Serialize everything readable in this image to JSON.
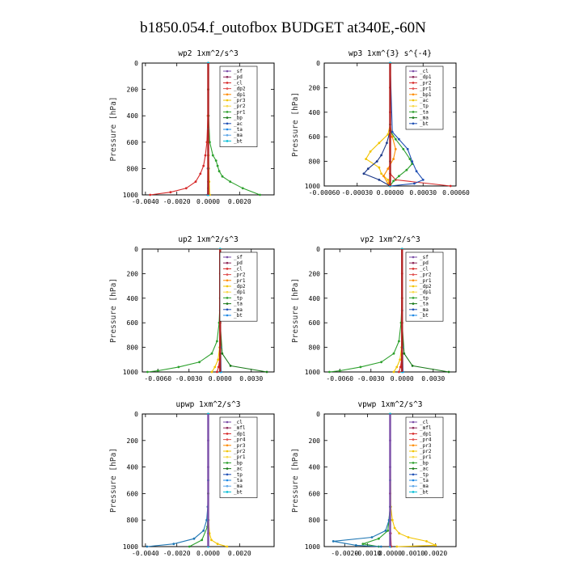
{
  "figure_title": "b1850.054.f_outofbox  BUDGET at340E,-60N",
  "chart_data": [
    {
      "type": "line",
      "title": "wp2   1xm^2/s^3",
      "ylabel": "Pressure [hPa]",
      "ylim": [
        1000,
        0
      ],
      "yticks": [
        "0",
        "200",
        "400",
        "600",
        "800",
        "1000"
      ],
      "xlim": [
        -0.0042,
        0.0042
      ],
      "xticks": [
        {
          "v": -0.004,
          "label": "-0.0040"
        },
        {
          "v": -0.002,
          "label": "-0.0020"
        },
        {
          "v": 0,
          "label": "0.0000"
        },
        {
          "v": 0.002,
          "label": "0.0020"
        }
      ],
      "legend": [
        "_sf",
        "_pd",
        "_cl",
        "_dp2",
        "_dp1",
        "_pr3",
        "_pr2",
        "_pr1",
        "_bp",
        "_ac",
        "_ta",
        "_ma",
        "_bt"
      ],
      "series": [
        {
          "legend": "_sf",
          "color": "#7b4ea8",
          "y": [
            0,
            200,
            400,
            600,
            700,
            800,
            900,
            950,
            1000
          ],
          "x": [
            0,
            0,
            0,
            0,
            0,
            0,
            0,
            0,
            0
          ]
        },
        {
          "legend": "_cl",
          "color": "#d62828",
          "y": [
            0,
            200,
            400,
            600,
            700,
            780,
            840,
            900,
            950,
            980,
            1000
          ],
          "x": [
            0,
            0,
            -2e-05,
            -8e-05,
            -0.00018,
            -0.0003,
            -0.0005,
            -0.0008,
            -0.0014,
            -0.0024,
            -0.0037
          ]
        },
        {
          "legend": "_pr1",
          "color": "#f2c400",
          "y": [
            0,
            400,
            600,
            700,
            800,
            900,
            1000
          ],
          "x": [
            0,
            0,
            0,
            2e-05,
            4e-05,
            6e-05,
            0.0001
          ]
        },
        {
          "legend": "_bp",
          "color": "#2ca02c",
          "y": [
            0,
            200,
            400,
            600,
            700,
            740,
            780,
            820,
            860,
            900,
            950,
            1000
          ],
          "x": [
            0,
            0,
            2e-05,
            0.0001,
            0.0003,
            0.0005,
            0.0006,
            0.0007,
            0.0009,
            0.0014,
            0.0022,
            0.0033
          ]
        },
        {
          "legend": "_ac",
          "color": "#1f4fb4",
          "y": [
            0,
            500,
            800,
            1000
          ],
          "x": [
            0,
            0,
            -2e-05,
            -4e-05
          ]
        },
        {
          "legend": "_ma",
          "color": "#1e88e5",
          "y": [
            0,
            500,
            800,
            1000
          ],
          "x": [
            0,
            0,
            1e-05,
            2e-05
          ]
        },
        {
          "legend": "_bt",
          "color": "#00bcd4",
          "y": [
            0,
            500,
            800,
            1000
          ],
          "x": [
            0,
            0,
            0,
            0
          ]
        }
      ]
    },
    {
      "type": "line",
      "title": "wp3   1xm^{3} s^{-4}",
      "ylabel": "Pressure [hPa]",
      "ylim": [
        1000,
        0
      ],
      "yticks": [
        "0",
        "200",
        "400",
        "600",
        "800",
        "1000"
      ],
      "xlim": [
        -0.0006,
        0.0006
      ],
      "xticks": [
        {
          "v": -0.0006,
          "label": "-0.00060"
        },
        {
          "v": -0.0003,
          "label": "-0.00030"
        },
        {
          "v": 0,
          "label": "0.00000"
        },
        {
          "v": 0.0003,
          "label": "0.00030"
        },
        {
          "v": 0.0006,
          "label": "0.00060"
        }
      ],
      "legend": [
        "_cl",
        "_dp1",
        "_pr2",
        "_pr1",
        "_bp1",
        "_ac",
        "_tp",
        "_ta",
        "_ma",
        "_bt"
      ],
      "series": [
        {
          "legend": "_cl",
          "color": "#d62828",
          "y": [
            0,
            200,
            400,
            600,
            800,
            900,
            950,
            1000
          ],
          "x": [
            0,
            0,
            0,
            0,
            0,
            0,
            5e-05,
            0.00055
          ]
        },
        {
          "legend": "_pr2",
          "color": "#f2c400",
          "y": [
            0,
            500,
            580,
            650,
            720,
            780,
            850,
            900,
            950,
            1000
          ],
          "x": [
            0,
            0,
            -2e-05,
            -0.0001,
            -0.00018,
            -0.00022,
            -0.0001,
            -8e-05,
            -2e-05,
            0
          ]
        },
        {
          "legend": "_pr1",
          "color": "#ff8c00",
          "y": [
            0,
            500,
            600,
            700,
            780,
            860,
            920,
            980,
            1000
          ],
          "x": [
            0,
            0,
            2e-05,
            5e-05,
            3e-05,
            -2e-05,
            -6e-05,
            -2e-05,
            0
          ]
        },
        {
          "legend": "_bp1",
          "color": "#2ca02c",
          "y": [
            0,
            550,
            620,
            700,
            780,
            820,
            870,
            920,
            960,
            1000
          ],
          "x": [
            0,
            0,
            5e-05,
            0.00012,
            0.00018,
            0.0002,
            0.00015,
            8e-05,
            3e-05,
            0
          ]
        },
        {
          "legend": "_tp",
          "color": "#1f4fb4",
          "y": [
            0,
            560,
            620,
            700,
            800,
            880,
            950,
            980,
            1000
          ],
          "x": [
            0,
            2e-05,
            8e-05,
            0.00016,
            0.0002,
            0.00024,
            0.0003,
            0.00022,
            0
          ]
        },
        {
          "legend": "_ta",
          "color": "#1e3a8a",
          "y": [
            0,
            550,
            650,
            750,
            800,
            860,
            900,
            950,
            1000
          ],
          "x": [
            0,
            0,
            -3e-05,
            -8e-05,
            -0.00012,
            -0.0002,
            -0.00024,
            -0.0001,
            0
          ]
        },
        {
          "legend": "_bt",
          "color": "#00bcd4",
          "y": [
            0,
            500,
            800,
            1000
          ],
          "x": [
            0,
            0,
            0,
            0
          ]
        }
      ]
    },
    {
      "type": "line",
      "title": "up2   1xm^2/s^3",
      "ylabel": "Pressure [hPa]",
      "ylim": [
        1000,
        0
      ],
      "yticks": [
        "0",
        "200",
        "400",
        "600",
        "800",
        "1000"
      ],
      "xlim": [
        -0.0075,
        0.0052
      ],
      "xticks": [
        {
          "v": -0.006,
          "label": "-0.0060"
        },
        {
          "v": -0.003,
          "label": "-0.0030"
        },
        {
          "v": 0,
          "label": "0.0000"
        },
        {
          "v": 0.003,
          "label": "0.0030"
        }
      ],
      "legend": [
        "_sf",
        "_pd",
        "_cl",
        "_pr2",
        "_pr1",
        "_dp2",
        "_dp1",
        "_tp",
        "_ta",
        "_ma",
        "_bt"
      ],
      "series": [
        {
          "legend": "_pd",
          "color": "#d62828",
          "y": [
            0,
            200,
            400,
            600,
            800,
            900,
            960,
            1000
          ],
          "x": [
            0,
            0,
            0,
            0,
            0,
            -5e-05,
            -0.00015,
            -0.0003
          ]
        },
        {
          "legend": "_pr2",
          "color": "#f2c400",
          "y": [
            0,
            500,
            800,
            900,
            960,
            1000
          ],
          "x": [
            0,
            0,
            -5e-05,
            -0.0002,
            -0.0005,
            -0.0008
          ]
        },
        {
          "legend": "_dp2",
          "color": "#2ca02c",
          "y": [
            0,
            400,
            600,
            750,
            850,
            920,
            960,
            990,
            1000
          ],
          "x": [
            0,
            0,
            -0.0001,
            -0.0003,
            -0.0008,
            -0.002,
            -0.004,
            -0.006,
            -0.007
          ]
        },
        {
          "legend": "_dp1",
          "color": "#1a7a1a",
          "y": [
            0,
            600,
            850,
            950,
            1000
          ],
          "x": [
            0,
            0,
            0.0002,
            0.001,
            0.0045
          ]
        },
        {
          "legend": "_tp",
          "color": "#1e88e5",
          "y": [
            0,
            500,
            800,
            1000
          ],
          "x": [
            0,
            0,
            5e-05,
            0.0001
          ]
        },
        {
          "legend": "_bt",
          "color": "#00bcd4",
          "y": [
            0,
            500,
            800,
            1000
          ],
          "x": [
            0,
            0,
            0,
            0
          ]
        }
      ]
    },
    {
      "type": "line",
      "title": "vp2   1xm^2/s^3",
      "ylabel": "Pressure [hPa]",
      "ylim": [
        1000,
        0
      ],
      "yticks": [
        "0",
        "200",
        "400",
        "600",
        "800",
        "1000"
      ],
      "xlim": [
        -0.0075,
        0.0052
      ],
      "xticks": [
        {
          "v": -0.006,
          "label": "-0.0060"
        },
        {
          "v": -0.003,
          "label": "-0.0030"
        },
        {
          "v": 0,
          "label": "0.0000"
        },
        {
          "v": 0.003,
          "label": "0.0030"
        }
      ],
      "legend": [
        "_sf",
        "_pd",
        "_cl",
        "_pr2",
        "_pr1",
        "_dp2",
        "_dp1",
        "_tp",
        "_ta",
        "_ma",
        "_bt"
      ],
      "series": [
        {
          "legend": "_pd",
          "color": "#d62828",
          "y": [
            0,
            200,
            400,
            600,
            800,
            900,
            960,
            1000
          ],
          "x": [
            0,
            0,
            0,
            0,
            0,
            -5e-05,
            -0.00015,
            -0.0003
          ]
        },
        {
          "legend": "_pr2",
          "color": "#f2c400",
          "y": [
            0,
            500,
            800,
            900,
            960,
            1000
          ],
          "x": [
            0,
            0,
            -5e-05,
            -0.0002,
            -0.0005,
            -0.0008
          ]
        },
        {
          "legend": "_dp2",
          "color": "#2ca02c",
          "y": [
            0,
            400,
            600,
            750,
            850,
            920,
            960,
            990,
            1000
          ],
          "x": [
            0,
            0,
            -0.0001,
            -0.0003,
            -0.0008,
            -0.002,
            -0.004,
            -0.006,
            -0.007
          ]
        },
        {
          "legend": "_dp1",
          "color": "#1a7a1a",
          "y": [
            0,
            600,
            850,
            950,
            1000
          ],
          "x": [
            0,
            0,
            0.0002,
            0.001,
            0.0045
          ]
        },
        {
          "legend": "_tp",
          "color": "#1e88e5",
          "y": [
            0,
            500,
            800,
            1000
          ],
          "x": [
            0,
            0,
            5e-05,
            0.0001
          ]
        },
        {
          "legend": "_bt",
          "color": "#00bcd4",
          "y": [
            0,
            500,
            800,
            1000
          ],
          "x": [
            0,
            0,
            0,
            0
          ]
        }
      ]
    },
    {
      "type": "line",
      "title": "upwp   1xm^2/s^3",
      "ylabel": "Pressure [hPa]",
      "ylim": [
        1000,
        0
      ],
      "yticks": [
        "0",
        "200",
        "400",
        "600",
        "800",
        "1000"
      ],
      "xlim": [
        -0.0042,
        0.0042
      ],
      "xticks": [
        {
          "v": -0.004,
          "label": "-0.0040"
        },
        {
          "v": -0.002,
          "label": "-0.0020"
        },
        {
          "v": 0,
          "label": "0.0000"
        },
        {
          "v": 0.002,
          "label": "0.0020"
        }
      ],
      "legend": [
        "_cl",
        "_mfl",
        "_dp1",
        "_pr4",
        "_pr3",
        "_pr2",
        "_pr1",
        "_bp",
        "_ac",
        "_tp",
        "_ta",
        "_ma",
        "_bt"
      ],
      "series": [
        {
          "legend": "_cl",
          "color": "#7b4ea8",
          "y": [
            0,
            200,
            400,
            600,
            800,
            900,
            1000
          ],
          "x": [
            0,
            0,
            0,
            0,
            0,
            0,
            0
          ]
        },
        {
          "legend": "_pr1",
          "color": "#f2c400",
          "y": [
            0,
            600,
            800,
            900,
            950,
            980,
            1000
          ],
          "x": [
            0,
            0,
            2e-05,
            8e-05,
            0.0002,
            0.0006,
            0.0012
          ]
        },
        {
          "legend": "_bp",
          "color": "#2ca02c",
          "y": [
            0,
            600,
            850,
            950,
            1000
          ],
          "x": [
            0,
            0,
            -5e-05,
            -0.0004,
            -0.0012
          ]
        },
        {
          "legend": "_ac",
          "color": "#1f77b4",
          "y": [
            0,
            500,
            700,
            800,
            880,
            940,
            980,
            1000
          ],
          "x": [
            0,
            0,
            -3e-05,
            -0.0001,
            -0.0003,
            -0.0009,
            -0.0022,
            -0.0039
          ]
        },
        {
          "legend": "_bt",
          "color": "#00bcd4",
          "y": [
            0,
            500,
            800,
            1000
          ],
          "x": [
            0,
            0,
            0,
            0
          ]
        }
      ]
    },
    {
      "type": "line",
      "title": "vpwp   1xm^2/s^3",
      "ylabel": "Pressure [hPa]",
      "ylim": [
        1000,
        0
      ],
      "yticks": [
        "0",
        "200",
        "400",
        "600",
        "800",
        "1000"
      ],
      "xlim": [
        -0.0029,
        0.0029
      ],
      "xticks": [
        {
          "v": -0.002,
          "label": "-0.0020"
        },
        {
          "v": -0.001,
          "label": "-0.0010"
        },
        {
          "v": 0,
          "label": "0.0000"
        },
        {
          "v": 0.001,
          "label": "0.0010"
        },
        {
          "v": 0.002,
          "label": "0.0020"
        }
      ],
      "legend": [
        "_cl",
        "_mfl",
        "_dp1",
        "_pr4",
        "_pr3",
        "_pr2",
        "_pr1",
        "_bp",
        "_ac",
        "_tp",
        "_ta",
        "_ma",
        "_bt"
      ],
      "series": [
        {
          "legend": "_cl",
          "color": "#7b4ea8",
          "y": [
            0,
            200,
            400,
            600,
            800,
            900,
            1000
          ],
          "x": [
            0,
            0,
            0,
            0,
            0,
            0,
            0
          ]
        },
        {
          "legend": "_dp1",
          "color": "#d62828",
          "y": [
            0,
            600,
            800,
            900,
            1000
          ],
          "x": [
            0,
            0,
            0,
            2e-05,
            5e-05
          ]
        },
        {
          "legend": "_pr1",
          "color": "#f2c400",
          "y": [
            0,
            700,
            800,
            860,
            900,
            930,
            960,
            990,
            1000
          ],
          "x": [
            0,
            3e-05,
            0.0001,
            0.0002,
            0.0004,
            0.0008,
            0.0016,
            0.002,
            0.0003
          ]
        },
        {
          "legend": "_bp",
          "color": "#2ca02c",
          "y": [
            0,
            700,
            880,
            940,
            980,
            1000
          ],
          "x": [
            0,
            0,
            -0.0001,
            -0.0005,
            -0.0012,
            -0.0005
          ]
        },
        {
          "legend": "_ac",
          "color": "#1f77b4",
          "y": [
            0,
            700,
            800,
            880,
            930,
            960,
            990,
            1000
          ],
          "x": [
            0,
            0,
            -5e-05,
            -0.0002,
            -0.0008,
            -0.0025,
            -0.0015,
            -0.0004
          ]
        },
        {
          "legend": "_bt",
          "color": "#00bcd4",
          "y": [
            0,
            500,
            800,
            1000
          ],
          "x": [
            0,
            0,
            0,
            0
          ]
        }
      ]
    }
  ]
}
